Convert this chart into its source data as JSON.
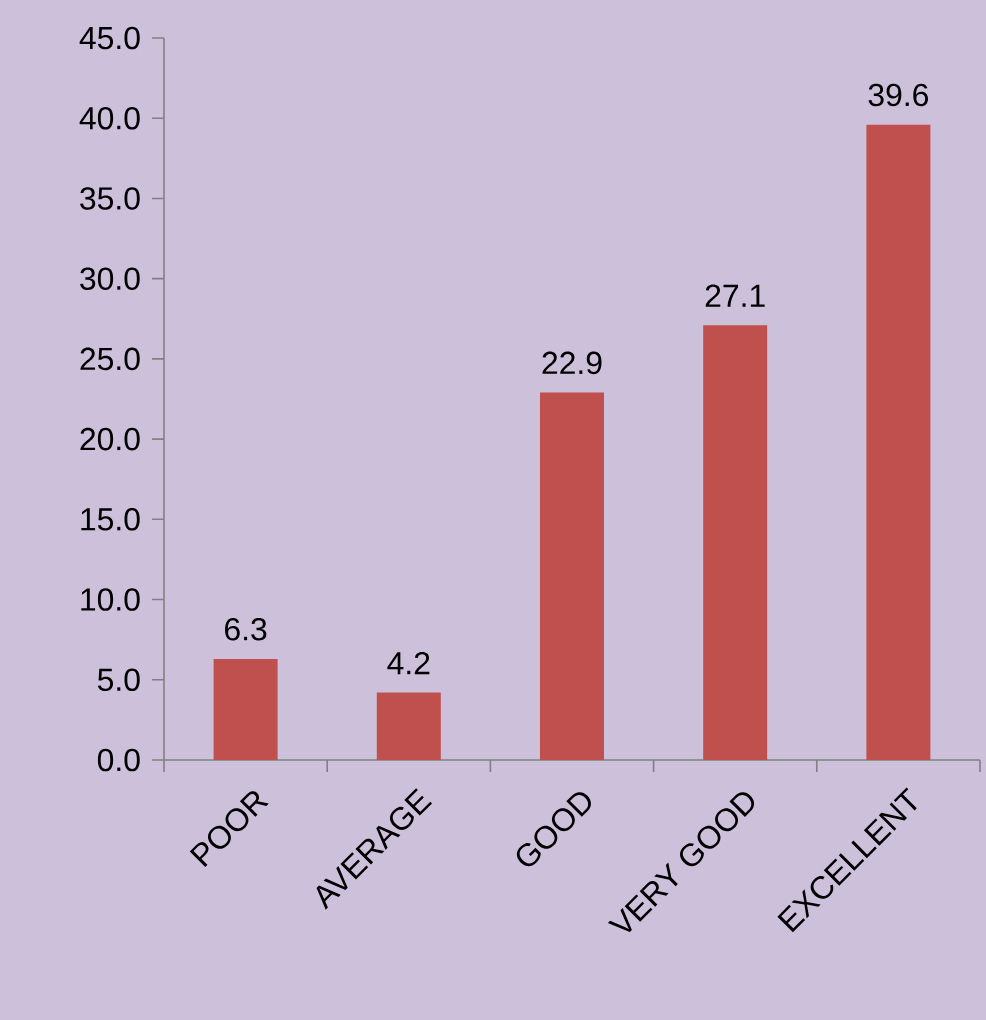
{
  "chart_data": {
    "type": "bar",
    "categories": [
      "POOR",
      "AVERAGE",
      "GOOD",
      "VERY GOOD",
      "EXCELLENT"
    ],
    "values": [
      6.3,
      4.2,
      22.9,
      27.1,
      39.6
    ],
    "value_labels": [
      "6.3",
      "4.2",
      "22.9",
      "27.1",
      "39.6"
    ],
    "color": "#c0504d",
    "ylim": [
      0,
      45
    ],
    "yticks": [
      {
        "value": 0,
        "label": "0.0"
      },
      {
        "value": 5,
        "label": "5.0"
      },
      {
        "value": 10,
        "label": "10.0"
      },
      {
        "value": 15,
        "label": "15.0"
      },
      {
        "value": 20,
        "label": "20.0"
      },
      {
        "value": 25,
        "label": "25.0"
      },
      {
        "value": 30,
        "label": "30.0"
      },
      {
        "value": 35,
        "label": "35.0"
      },
      {
        "value": 40,
        "label": "40.0"
      },
      {
        "value": 45,
        "label": "45.0"
      }
    ],
    "grid": false
  }
}
